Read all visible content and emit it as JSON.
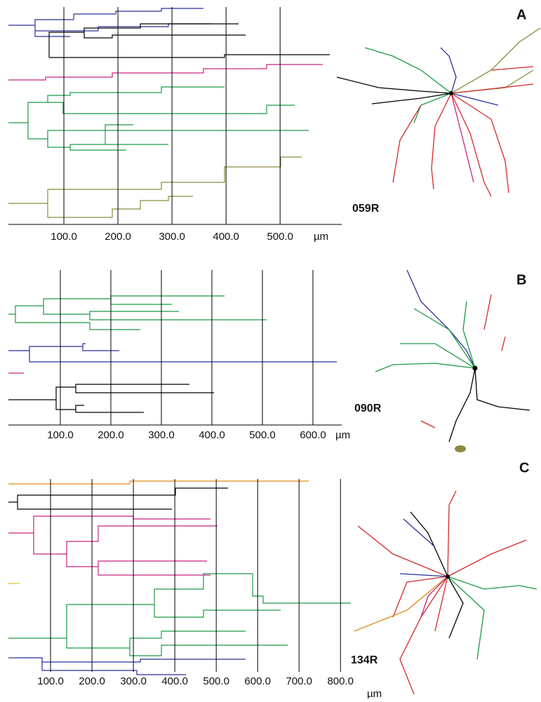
{
  "chart_data": [
    {
      "type": "dendrogram",
      "panel": "A",
      "specimen": "059R",
      "xlabel": "µm",
      "xlim": [
        0,
        614
      ],
      "xticks": [
        {
          "value": 100,
          "label": "100.0"
        },
        {
          "value": 200,
          "label": "200.0"
        },
        {
          "value": 300,
          "label": "300.0"
        },
        {
          "value": 400,
          "label": "400.0"
        },
        {
          "value": 500,
          "label": "500.0"
        }
      ]
    },
    {
      "type": "dendrogram",
      "panel": "B",
      "specimen": "090R",
      "xlabel": "µm",
      "xlim": [
        0,
        657
      ],
      "xticks": [
        {
          "value": 100,
          "label": "100.0"
        },
        {
          "value": 200,
          "label": "200.0"
        },
        {
          "value": 300,
          "label": "300.0"
        },
        {
          "value": 400,
          "label": "400.0"
        },
        {
          "value": 500,
          "label": "500.0"
        },
        {
          "value": 600,
          "label": "600.0"
        }
      ]
    },
    {
      "type": "dendrogram",
      "panel": "C",
      "specimen": "134R",
      "xlabel": "µm",
      "xlim": [
        0,
        825
      ],
      "xticks": [
        {
          "value": 100,
          "label": "100.0"
        },
        {
          "value": 200,
          "label": "200.0"
        },
        {
          "value": 300,
          "label": "300.0"
        },
        {
          "value": 400,
          "label": "400.0"
        },
        {
          "value": 500,
          "label": "500.0"
        },
        {
          "value": 600,
          "label": "600.0"
        },
        {
          "value": 700,
          "label": "700.0"
        },
        {
          "value": 800,
          "label": "800.0"
        }
      ]
    }
  ]
}
